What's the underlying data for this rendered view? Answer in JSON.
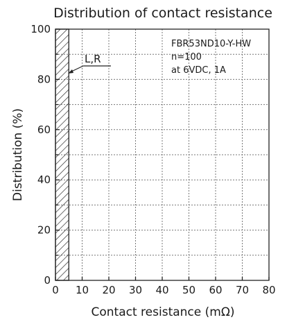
{
  "chart_data": {
    "type": "bar",
    "title": "Distribution of contact resistance",
    "xlabel": "Contact resistance (mΩ)",
    "ylabel": "Distribution (%)",
    "xlim": [
      0,
      80
    ],
    "ylim": [
      0,
      100
    ],
    "x_ticks": [
      0,
      10,
      20,
      30,
      40,
      50,
      60,
      70,
      80
    ],
    "y_ticks": [
      0,
      20,
      40,
      60,
      80,
      100
    ],
    "grid": true,
    "bars": [
      {
        "x_start": 0,
        "x_end": 5,
        "value": 100,
        "fill": "hatched"
      }
    ],
    "annotations": {
      "model": "FBR53ND10-Y-HW",
      "sample": "n=100",
      "condition": "at 6VDC, 1A",
      "callout": "L,R"
    }
  }
}
